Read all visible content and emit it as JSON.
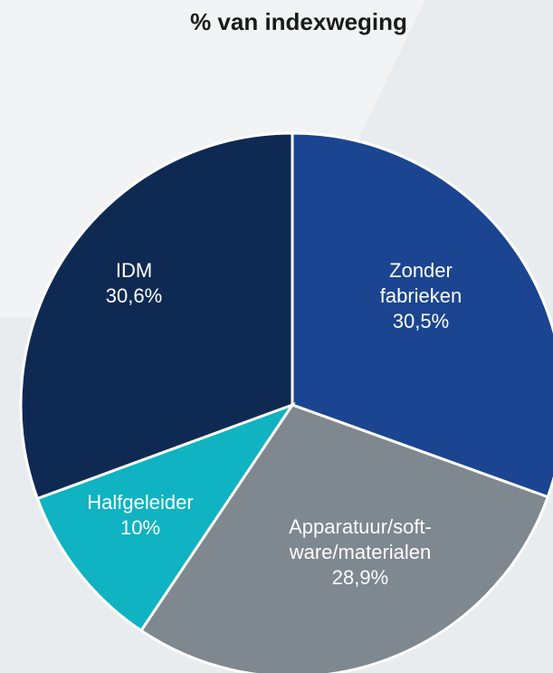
{
  "chart_data": {
    "type": "pie",
    "title": "% van indexweging",
    "categories": [
      "Zonder\nfabrieken",
      "Apparatuur/soft-\nware/materialen",
      "Halfgeleider",
      "IDM"
    ],
    "values": [
      30.5,
      28.9,
      10,
      30.6
    ],
    "value_labels": [
      "30,5%",
      "28,9%",
      "10%",
      "30,6%"
    ],
    "colors": [
      "#1b4590",
      "#7f878f",
      "#10b3c1",
      "#0f2a52"
    ]
  }
}
